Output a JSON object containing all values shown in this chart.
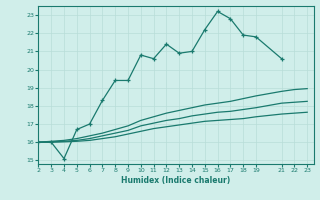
{
  "title": "",
  "xlabel": "Humidex (Indice chaleur)",
  "bg_color": "#d0eeea",
  "grid_color": "#b8ddd8",
  "line_color": "#1a7a6e",
  "ylim": [
    14.8,
    23.5
  ],
  "xlim": [
    2,
    23.5
  ],
  "yticks": [
    15,
    16,
    17,
    18,
    19,
    20,
    21,
    22,
    23
  ],
  "xticks": [
    2,
    3,
    4,
    5,
    6,
    7,
    8,
    9,
    10,
    11,
    12,
    13,
    14,
    15,
    16,
    17,
    18,
    19,
    21,
    22,
    23
  ],
  "line1_x": [
    2,
    3,
    4,
    5,
    6,
    7,
    8,
    9,
    10,
    11,
    12,
    13,
    14,
    15,
    16,
    17,
    18,
    19,
    21,
    22,
    23
  ],
  "line1_y": [
    16.0,
    16.0,
    15.1,
    16.7,
    17.0,
    18.3,
    19.4,
    19.4,
    20.8,
    20.6,
    21.4,
    20.9,
    21.0,
    22.2,
    23.2,
    22.8,
    21.9,
    21.8,
    20.6,
    null,
    null
  ],
  "line2_x": [
    2,
    3,
    4,
    5,
    6,
    7,
    8,
    9,
    10,
    11,
    12,
    13,
    14,
    15,
    16,
    17,
    18,
    19,
    21,
    22,
    23
  ],
  "line2_y": [
    16.0,
    16.05,
    16.1,
    16.2,
    16.35,
    16.5,
    16.7,
    16.9,
    17.2,
    17.4,
    17.6,
    17.75,
    17.9,
    18.05,
    18.15,
    18.25,
    18.4,
    18.55,
    18.8,
    18.9,
    18.95
  ],
  "line3_x": [
    2,
    3,
    4,
    5,
    6,
    7,
    8,
    9,
    10,
    11,
    12,
    13,
    14,
    15,
    16,
    17,
    18,
    19,
    21,
    22,
    23
  ],
  "line3_y": [
    16.0,
    16.02,
    16.05,
    16.1,
    16.2,
    16.35,
    16.5,
    16.65,
    16.9,
    17.05,
    17.2,
    17.3,
    17.45,
    17.55,
    17.65,
    17.7,
    17.8,
    17.9,
    18.15,
    18.2,
    18.25
  ],
  "line4_x": [
    2,
    3,
    4,
    5,
    6,
    7,
    8,
    9,
    10,
    11,
    12,
    13,
    14,
    15,
    16,
    17,
    18,
    19,
    21,
    22,
    23
  ],
  "line4_y": [
    16.0,
    16.0,
    16.02,
    16.05,
    16.1,
    16.2,
    16.3,
    16.45,
    16.6,
    16.75,
    16.85,
    16.95,
    17.05,
    17.15,
    17.2,
    17.25,
    17.3,
    17.4,
    17.55,
    17.6,
    17.65
  ]
}
